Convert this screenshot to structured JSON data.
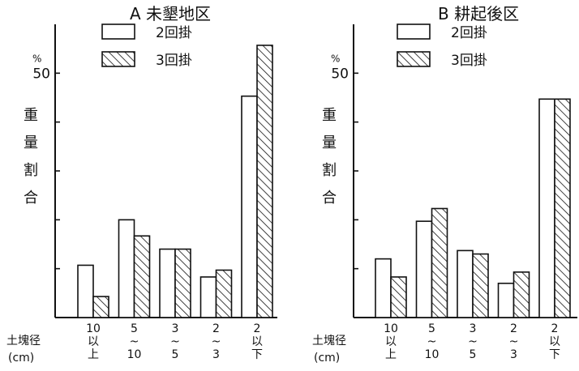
{
  "chart_data": [
    {
      "type": "bar",
      "title": "A 未墾地区",
      "ylabel": "重量割合",
      "unit": "%",
      "ylim": [
        0,
        60
      ],
      "yticks": [
        0,
        10,
        20,
        30,
        40,
        50
      ],
      "ytick_labels": [
        "",
        "",
        "",
        "",
        "",
        "50"
      ],
      "xlabel": "土塊径 (cm)",
      "categories": [
        "10以上",
        "5~10",
        "3~5",
        "2~3",
        "2以下"
      ],
      "category_lines": [
        [
          "10",
          "以",
          "上"
        ],
        [
          "5",
          "~",
          "10"
        ],
        [
          "3",
          "~",
          "5"
        ],
        [
          "2",
          "~",
          "3"
        ],
        [
          "2",
          "以",
          "下"
        ]
      ],
      "series": [
        {
          "name": "2回掛",
          "values": [
            10.7,
            20,
            14,
            8.3,
            45.3
          ]
        },
        {
          "name": "3回掛",
          "values": [
            4.3,
            16.7,
            14,
            9.7,
            55.7
          ]
        }
      ],
      "legend_position": "top"
    },
    {
      "type": "bar",
      "title": "B 耕起後区",
      "ylabel": "重量割合",
      "unit": "%",
      "ylim": [
        0,
        60
      ],
      "yticks": [
        0,
        10,
        20,
        30,
        40,
        50
      ],
      "ytick_labels": [
        "",
        "",
        "",
        "",
        "",
        "50"
      ],
      "xlabel": "土塊径 (cm)",
      "categories": [
        "10以上",
        "5~10",
        "3~5",
        "2~3",
        "2以下"
      ],
      "category_lines": [
        [
          "10",
          "以",
          "上"
        ],
        [
          "5",
          "~",
          "10"
        ],
        [
          "3",
          "~",
          "5"
        ],
        [
          "2",
          "~",
          "3"
        ],
        [
          "2",
          "以",
          "下"
        ]
      ],
      "series": [
        {
          "name": "2回掛",
          "values": [
            12,
            19.7,
            13.7,
            7,
            44.7
          ]
        },
        {
          "name": "3回掛",
          "values": [
            8.3,
            22.3,
            13,
            9.3,
            44.7
          ]
        }
      ],
      "legend_position": "top"
    }
  ]
}
